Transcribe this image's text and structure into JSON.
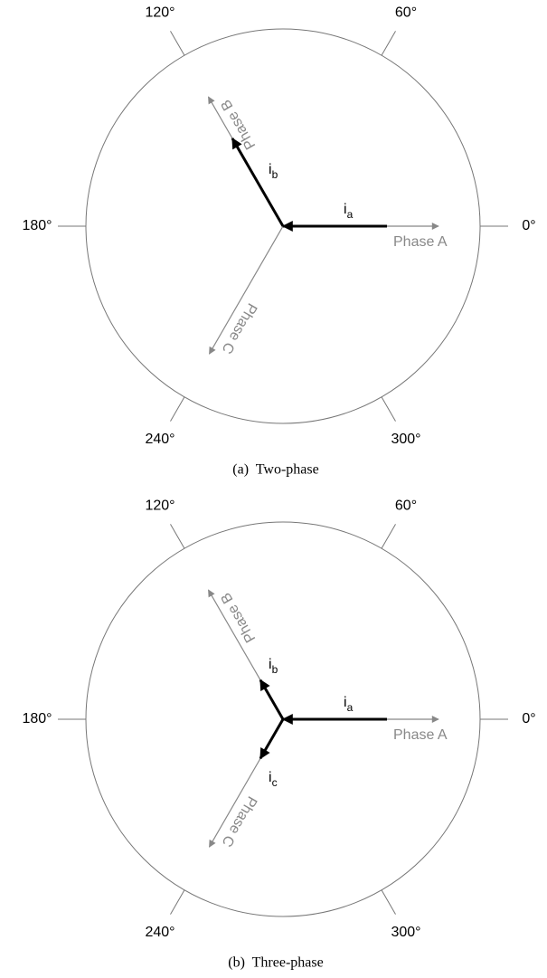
{
  "panels": [
    {
      "caption": "(a)  Two-phase",
      "angles": [
        {
          "value": 0,
          "label": "0°"
        },
        {
          "value": 60,
          "label": "60°"
        },
        {
          "value": 120,
          "label": "120°"
        },
        {
          "value": 180,
          "label": "180°"
        },
        {
          "value": 240,
          "label": "240°"
        },
        {
          "value": 300,
          "label": "300°"
        }
      ],
      "phases": [
        "Phase A",
        "Phase B",
        "Phase C"
      ],
      "currents": [
        {
          "main": "i",
          "sub": "a"
        },
        {
          "main": "i",
          "sub": "b"
        }
      ]
    },
    {
      "caption": "(b)  Three-phase",
      "angles": [
        {
          "value": 0,
          "label": "0°"
        },
        {
          "value": 60,
          "label": "60°"
        },
        {
          "value": 120,
          "label": "120°"
        },
        {
          "value": 180,
          "label": "180°"
        },
        {
          "value": 240,
          "label": "240°"
        },
        {
          "value": 300,
          "label": "300°"
        }
      ],
      "phases": [
        "Phase A",
        "Phase B",
        "Phase C"
      ],
      "currents": [
        {
          "main": "i",
          "sub": "a"
        },
        {
          "main": "i",
          "sub": "b"
        },
        {
          "main": "i",
          "sub": "c"
        }
      ]
    }
  ]
}
